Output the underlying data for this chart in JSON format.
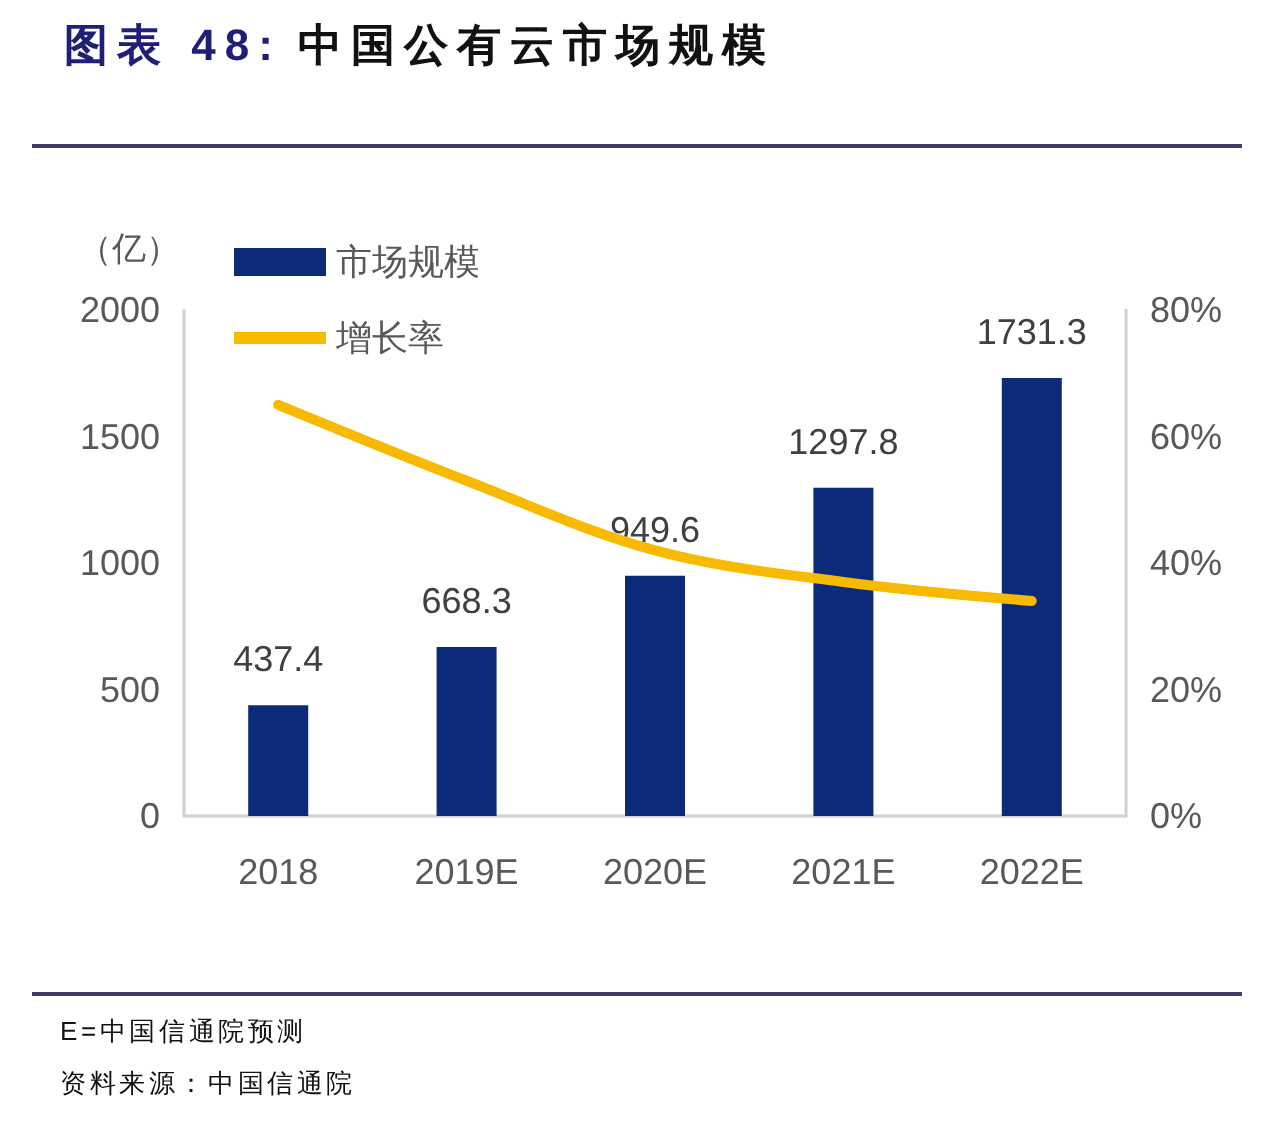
{
  "chart_data": {
    "type": "bar",
    "title": "图表 48: 中国公有云市场规模",
    "ylabel": "（亿）",
    "categories": [
      "2018",
      "2019E",
      "2020E",
      "2021E",
      "2022E"
    ],
    "series": [
      {
        "name": "市场规模",
        "color": "#0b2a7a",
        "values": [
          437.4,
          668.3,
          949.6,
          1297.8,
          1731.3
        ],
        "value_labels": [
          "437.4",
          "668.3",
          "949.6",
          "1297.8",
          "1731.3"
        ]
      },
      {
        "name": "增长率",
        "type": "line",
        "axis": "y2",
        "color": "#f7ba00",
        "values": [
          65,
          53,
          42,
          37,
          34
        ]
      }
    ],
    "ylim": [
      0,
      2000
    ],
    "yticks": [
      0,
      500,
      1000,
      1500,
      2000
    ],
    "y2lim": [
      0,
      80
    ],
    "y2ticks": [
      {
        "value": 0,
        "label": "0%"
      },
      {
        "value": 20,
        "label": "20%"
      },
      {
        "value": 40,
        "label": "40%"
      },
      {
        "value": 60,
        "label": "60%"
      },
      {
        "value": 80,
        "label": "80%"
      }
    ],
    "marker": "none",
    "legend": "top left",
    "grid": false,
    "annotations": [
      "E=中国信通院预测",
      "资料来源：中国信通院"
    ]
  }
}
